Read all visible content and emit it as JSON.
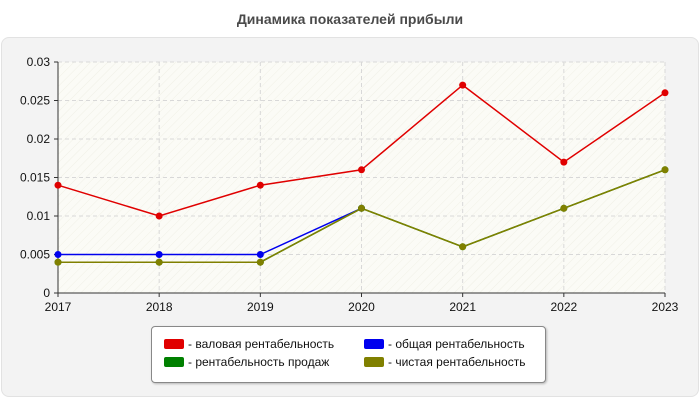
{
  "chart_data": {
    "type": "line",
    "title": "Динамика показателей прибыли",
    "x": [
      "2017",
      "2018",
      "2019",
      "2020",
      "2021",
      "2022",
      "2023"
    ],
    "ylim": [
      0,
      0.03
    ],
    "yticks": [
      "0",
      "0.005",
      "0.01",
      "0.015",
      "0.02",
      "0.025",
      "0.03"
    ],
    "grid": true,
    "legend_position": "bottom",
    "series": [
      {
        "name": "- валовая рентабельность",
        "color": "#e00000",
        "values": [
          0.014,
          0.01,
          0.014,
          0.016,
          0.027,
          0.017,
          0.026
        ]
      },
      {
        "name": "- общая рентабельность",
        "color": "#0000ee",
        "values": [
          0.005,
          0.005,
          0.005,
          0.011,
          null,
          null,
          null
        ]
      },
      {
        "name": "- рентабельность продаж",
        "color": "#008000",
        "values": [
          0.004,
          0.004,
          0.004,
          0.011,
          0.006,
          0.011,
          0.016
        ]
      },
      {
        "name": "- чистая рентабельность",
        "color": "#808000",
        "values": [
          0.004,
          0.004,
          0.004,
          0.011,
          0.006,
          0.011,
          0.016
        ]
      }
    ]
  }
}
